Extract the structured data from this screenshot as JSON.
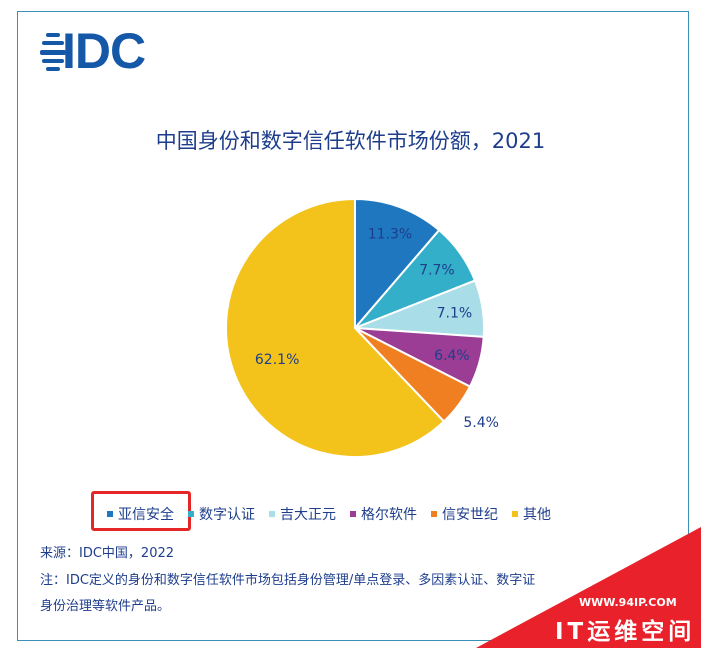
{
  "logo": {
    "text": "IDC",
    "color": "#1558a8"
  },
  "chart_data": {
    "type": "pie",
    "title": "中国身份和数字信任软件市场份额，2021",
    "start_angle_deg": 0,
    "direction": "clockwise",
    "slices": [
      {
        "name": "亚信安全",
        "value": 11.3,
        "label": "11.3%",
        "color": "#1f78bf"
      },
      {
        "name": "数字认证",
        "value": 7.7,
        "label": "7.7%",
        "color": "#34afc9"
      },
      {
        "name": "吉大正元",
        "value": 7.1,
        "label": "7.1%",
        "color": "#a9dde8"
      },
      {
        "name": "格尔软件",
        "value": 6.4,
        "label": "6.4%",
        "color": "#9b3d94"
      },
      {
        "name": "信安世纪",
        "value": 5.4,
        "label": "5.4%",
        "color": "#f07f22"
      },
      {
        "name": "其他",
        "value": 62.1,
        "label": "62.1%",
        "color": "#f3c21b"
      }
    ],
    "legend_position": "bottom",
    "highlighted_legend_entry": "亚信安全",
    "highlight_color": "#e52626"
  },
  "notes": {
    "source": "来源：IDC中国，2022",
    "note_line1": "注：IDC定义的身份和数字信任软件市场包括身份管理/单点登录、多因素认证、数字证",
    "note_line2": "身份治理等软件产品。"
  },
  "watermark": {
    "url": "WWW.94IP.COM",
    "brand": "IT运维空间",
    "color": "#e8212a"
  }
}
